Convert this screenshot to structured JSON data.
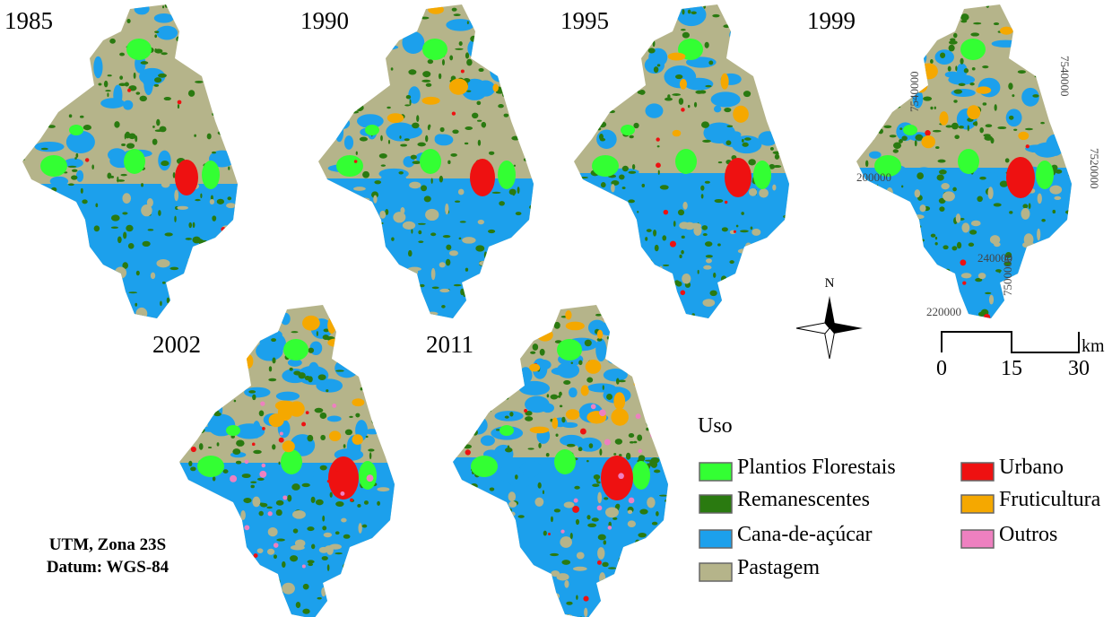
{
  "maps": [
    {
      "year": "1985"
    },
    {
      "year": "1990"
    },
    {
      "year": "1995"
    },
    {
      "year": "1999"
    },
    {
      "year": "2002"
    },
    {
      "year": "2011"
    }
  ],
  "coordinates": [
    "7540000",
    "7540000",
    "200000",
    "7520000",
    "240000",
    "7500000",
    "220000"
  ],
  "north": "N",
  "scale": {
    "ticks": [
      "0",
      "15",
      "30"
    ],
    "unit": "km"
  },
  "legend": {
    "title": "Uso",
    "items": [
      {
        "label": "Plantios Florestais",
        "color": "#33ff33"
      },
      {
        "label": "Remanescentes",
        "color": "#2a7a10"
      },
      {
        "label": "Cana-de-açúcar",
        "color": "#1ca0ec"
      },
      {
        "label": "Pastagem",
        "color": "#b5b48a"
      },
      {
        "label": "Urbano",
        "color": "#ee1111"
      },
      {
        "label": "Fruticultura",
        "color": "#f5a800"
      },
      {
        "label": "Outros",
        "color": "#ee80c0"
      }
    ]
  },
  "projection": [
    "UTM, Zona 23S",
    "Datum: WGS-84"
  ]
}
